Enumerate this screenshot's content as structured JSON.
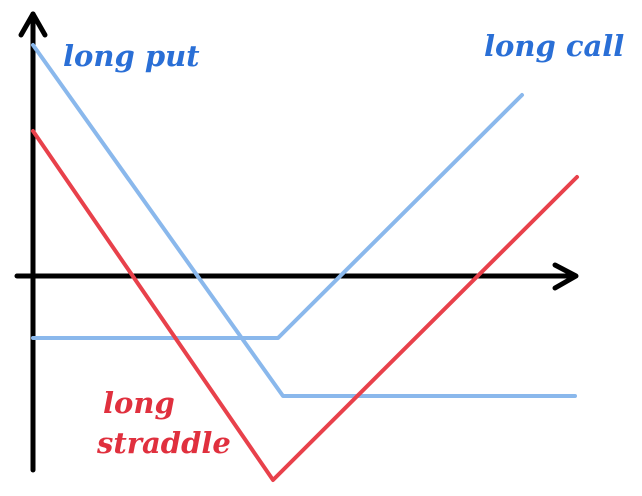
{
  "labels": {
    "long_put": "long put",
    "long_call": "long call",
    "long_straddle_line1": "long",
    "long_straddle_line2": "straddle"
  },
  "colors": {
    "axes": "#000000",
    "long_put_line": "#8ab8ec",
    "long_call_line": "#8ab8ec",
    "long_straddle_line": "#e8414b",
    "long_put_label": "#2a6fd6",
    "long_call_label": "#2a6fd6",
    "long_straddle_label": "#e0303e"
  }
}
